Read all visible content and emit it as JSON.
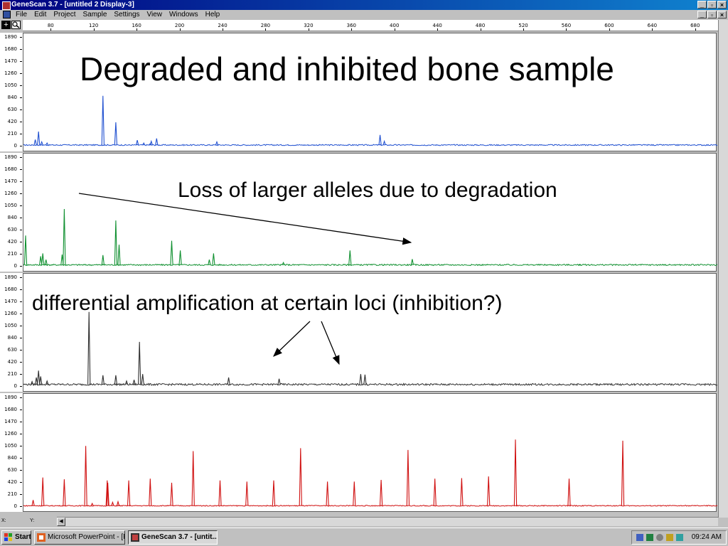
{
  "window": {
    "title": "GeneScan 3.7 - [untitled 2 Display-3]",
    "controls": [
      "_",
      "▫",
      "×"
    ]
  },
  "menu": {
    "items": [
      "File",
      "Edit",
      "Project",
      "Sample",
      "Settings",
      "View",
      "Windows",
      "Help"
    ]
  },
  "ruler": {
    "ticks": [
      "80",
      "120",
      "160",
      "200",
      "240",
      "280",
      "320",
      "360",
      "400",
      "440",
      "480",
      "520",
      "560",
      "600",
      "640",
      "680"
    ]
  },
  "yaxis_labels": [
    "1890",
    "1680",
    "1470",
    "1260",
    "1050",
    "840",
    "630",
    "420",
    "210",
    "0"
  ],
  "slide": {
    "title": "Degraded and inhibited bone sample",
    "annotation_degradation": "Loss of larger alleles due to degradation",
    "annotation_inhibition": "differential amplification at certain loci (inhibition?)"
  },
  "colors": {
    "blue_trace": "#2050d0",
    "green_trace": "#109030",
    "black_trace": "#303030",
    "red_trace": "#d01010",
    "titlebar": "#000080"
  },
  "chart_data": {
    "type": "line",
    "title": "",
    "xlabel": "",
    "ylabel": "",
    "xlim": [
      54,
      700
    ],
    "ylim": [
      0,
      1890
    ],
    "x_ticks": [
      80,
      120,
      160,
      200,
      240,
      280,
      320,
      360,
      400,
      440,
      480,
      520,
      560,
      600,
      640,
      680
    ],
    "y_ticks": [
      0,
      210,
      420,
      630,
      840,
      1050,
      1260,
      1470,
      1680,
      1890
    ],
    "panels": [
      {
        "color": "#2050d0",
        "baseline": 25,
        "peaks": [
          {
            "x": 65,
            "h": 120
          },
          {
            "x": 68,
            "h": 260
          },
          {
            "x": 71,
            "h": 80
          },
          {
            "x": 76,
            "h": 60
          },
          {
            "x": 128,
            "h": 880
          },
          {
            "x": 140,
            "h": 420
          },
          {
            "x": 160,
            "h": 110
          },
          {
            "x": 166,
            "h": 60
          },
          {
            "x": 173,
            "h": 90
          },
          {
            "x": 178,
            "h": 140
          },
          {
            "x": 172,
            "h": 50
          },
          {
            "x": 234,
            "h": 80
          },
          {
            "x": 386,
            "h": 200
          },
          {
            "x": 390,
            "h": 90
          }
        ]
      },
      {
        "color": "#109030",
        "baseline": 30,
        "peaks": [
          {
            "x": 56,
            "h": 540
          },
          {
            "x": 70,
            "h": 180
          },
          {
            "x": 72,
            "h": 230
          },
          {
            "x": 75,
            "h": 120
          },
          {
            "x": 90,
            "h": 210
          },
          {
            "x": 92,
            "h": 1000
          },
          {
            "x": 128,
            "h": 200
          },
          {
            "x": 140,
            "h": 800
          },
          {
            "x": 143,
            "h": 380
          },
          {
            "x": 192,
            "h": 450
          },
          {
            "x": 200,
            "h": 280
          },
          {
            "x": 227,
            "h": 120
          },
          {
            "x": 231,
            "h": 230
          },
          {
            "x": 296,
            "h": 70
          },
          {
            "x": 358,
            "h": 280
          },
          {
            "x": 416,
            "h": 130
          },
          {
            "x": 572,
            "h": 40
          }
        ]
      },
      {
        "color": "#303030",
        "baseline": 40,
        "peaks": [
          {
            "x": 62,
            "h": 90
          },
          {
            "x": 66,
            "h": 160
          },
          {
            "x": 68,
            "h": 280
          },
          {
            "x": 70,
            "h": 180
          },
          {
            "x": 76,
            "h": 100
          },
          {
            "x": 115,
            "h": 1300
          },
          {
            "x": 128,
            "h": 200
          },
          {
            "x": 140,
            "h": 200
          },
          {
            "x": 150,
            "h": 100
          },
          {
            "x": 157,
            "h": 120
          },
          {
            "x": 162,
            "h": 780
          },
          {
            "x": 165,
            "h": 220
          },
          {
            "x": 245,
            "h": 160
          },
          {
            "x": 292,
            "h": 140
          },
          {
            "x": 368,
            "h": 220
          },
          {
            "x": 372,
            "h": 210
          }
        ]
      },
      {
        "color": "#d01010",
        "baseline": 20,
        "peaks": [
          {
            "x": 63,
            "h": 120
          },
          {
            "x": 72,
            "h": 510
          },
          {
            "x": 92,
            "h": 480
          },
          {
            "x": 112,
            "h": 1060
          },
          {
            "x": 132,
            "h": 460
          },
          {
            "x": 132.5,
            "h": 420
          },
          {
            "x": 152,
            "h": 460
          },
          {
            "x": 172,
            "h": 490
          },
          {
            "x": 192,
            "h": 420
          },
          {
            "x": 212,
            "h": 970
          },
          {
            "x": 237,
            "h": 460
          },
          {
            "x": 262,
            "h": 440
          },
          {
            "x": 287,
            "h": 460
          },
          {
            "x": 312,
            "h": 1020
          },
          {
            "x": 337,
            "h": 440
          },
          {
            "x": 362,
            "h": 440
          },
          {
            "x": 387,
            "h": 470
          },
          {
            "x": 412,
            "h": 990
          },
          {
            "x": 437,
            "h": 490
          },
          {
            "x": 462,
            "h": 500
          },
          {
            "x": 487,
            "h": 530
          },
          {
            "x": 512,
            "h": 1170
          },
          {
            "x": 562,
            "h": 490
          },
          {
            "x": 612,
            "h": 1150
          },
          {
            "x": 118,
            "h": 60
          },
          {
            "x": 137,
            "h": 80
          },
          {
            "x": 142,
            "h": 90
          }
        ]
      }
    ]
  },
  "status": {
    "x_label": "X:",
    "y_label": "Y:"
  },
  "taskbar": {
    "start_label": "Start",
    "apps": [
      "Microsoft PowerPoint - [Pr...",
      "GeneScan 3.7 - [untit..."
    ],
    "clock": "09:24 AM"
  }
}
